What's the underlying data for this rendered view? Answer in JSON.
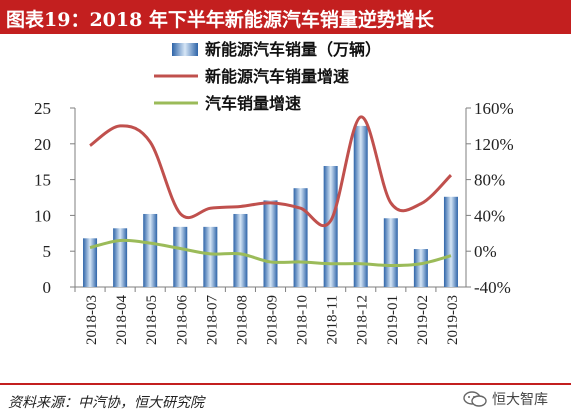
{
  "title": "图表19：2018 年下半年新能源汽车销量逆势增长",
  "source": "资料来源：中汽协，恒大研究院",
  "watermark": "恒大智库",
  "watermark_icon": "wechat-icon",
  "colors": {
    "title_bg": "#c31f1f",
    "bar": "#3a76bd",
    "bar_light": "#d6e6f6",
    "nev_growth": "#c0504d",
    "auto_growth": "#9bbb59"
  },
  "chart_data": {
    "type": "bar",
    "categories": [
      "2018-03",
      "2018-04",
      "2018-05",
      "2018-06",
      "2018-07",
      "2018-08",
      "2018-09",
      "2018-10",
      "2018-11",
      "2018-12",
      "2019-01",
      "2019-02",
      "2019-03"
    ],
    "series": [
      {
        "name": "新能源汽车销量（万辆）",
        "type": "bar",
        "axis": "left",
        "values": [
          6.8,
          8.2,
          10.2,
          8.4,
          8.4,
          10.2,
          12.1,
          13.8,
          16.9,
          22.5,
          9.6,
          5.3,
          12.6
        ]
      },
      {
        "name": "新能源汽车销量增速",
        "type": "line",
        "axis": "right",
        "values": [
          118,
          140,
          122,
          42,
          48,
          50,
          54,
          48,
          34,
          150,
          54,
          53,
          85
        ]
      },
      {
        "name": "汽车销量增速",
        "type": "line",
        "axis": "right",
        "values": [
          4,
          12,
          9,
          3,
          -3,
          -3,
          -12,
          -12,
          -14,
          -14,
          -16,
          -14,
          -5
        ]
      }
    ],
    "y_left": {
      "ylim": [
        0,
        25
      ],
      "ticks": [
        "0",
        "5",
        "10",
        "15",
        "20",
        "25"
      ]
    },
    "y_right": {
      "ylim": [
        -40,
        160
      ],
      "ticks": [
        "-40%",
        "0%",
        "40%",
        "80%",
        "120%",
        "160%"
      ]
    },
    "legend": "top-center",
    "grid": false
  }
}
